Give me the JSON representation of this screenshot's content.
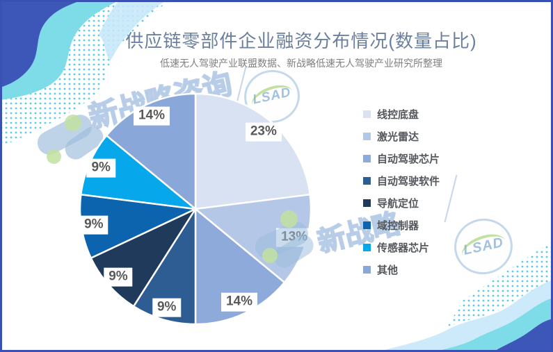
{
  "chart_data": {
    "type": "pie",
    "title": "供应链零部件企业融资分布情况(数量占比)",
    "subtitle": "低速无人驾驶产业联盟数据、新战略低速无人驾驶产业研究所整理",
    "legend_position": "right",
    "start_angle_deg": 0,
    "direction": "clockwise",
    "series": [
      {
        "label": "线控底盘",
        "value_pct": 23,
        "label_text": "23%",
        "color": "#D9E2F3"
      },
      {
        "label": "激光雷达",
        "value_pct": 13,
        "label_text": "13%",
        "color": "#B4C7E7"
      },
      {
        "label": "自动驾驶芯片",
        "value_pct": 14,
        "label_text": "14%",
        "color": "#8EAADB"
      },
      {
        "label": "自动驾驶软件",
        "value_pct": 9,
        "label_text": "9%",
        "color": "#2E5D94"
      },
      {
        "label": "导航定位",
        "value_pct": 9,
        "label_text": "9%",
        "color": "#203A5C"
      },
      {
        "label": "域控制器",
        "value_pct": 9,
        "label_text": "9%",
        "color": "#0C64AE"
      },
      {
        "label": "传感器芯片",
        "value_pct": 9,
        "label_text": "9%",
        "color": "#06A7EB"
      },
      {
        "label": "其他",
        "value_pct": 14,
        "label_text": "14%",
        "color": "#8AA7D9"
      }
    ],
    "label_color": "#595959",
    "slice_stroke": "#FFFFFF"
  },
  "watermarks": {
    "brand_text": "新战略咨询",
    "brand_text_short": "新战略",
    "logo_text": "LSAD"
  },
  "decor_colors": {
    "wave_dark": "#3D57B8",
    "wave_cyan": "#7EDCE9",
    "wave_pale": "#C7E8F8",
    "dot_cyan": "#57CBE8",
    "border": "#3950B4"
  }
}
